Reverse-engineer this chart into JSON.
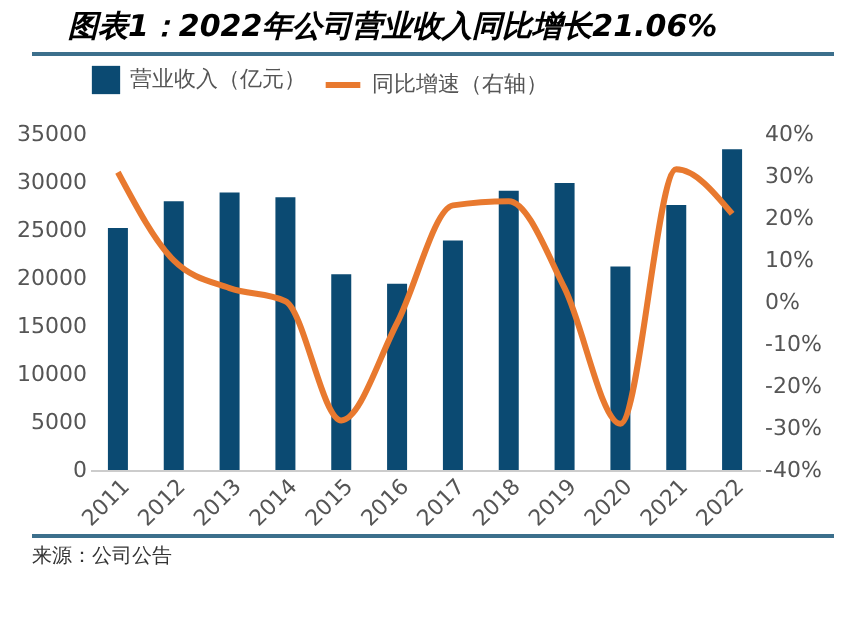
{
  "chart_data": {
    "type": "bar",
    "title": "图表1：2022年公司营业收入同比增长21.06%",
    "categories": [
      "2011",
      "2012",
      "2013",
      "2014",
      "2015",
      "2016",
      "2017",
      "2018",
      "2019",
      "2020",
      "2021",
      "2022"
    ],
    "series": [
      {
        "name": "营业收入（亿元）",
        "color": "#0b4a72",
        "values": [
          25200,
          28000,
          28900,
          28400,
          20400,
          19400,
          23900,
          29100,
          29900,
          21200,
          27600,
          33400
        ]
      },
      {
        "name": "同比增速（右轴）",
        "type": "line",
        "axis": "y2",
        "color": "#e8792f",
        "values": [
          30.9,
          9.9,
          3.3,
          0.2,
          -28.2,
          -5,
          23,
          24,
          3.3,
          -29,
          31.6,
          21
        ]
      }
    ],
    "ylim": [
      0,
      35000
    ],
    "yticks": [
      0,
      5000,
      10000,
      15000,
      20000,
      25000,
      30000,
      35000
    ],
    "y2lim": [
      -40,
      40
    ],
    "y2ticks": [
      {
        "value": -40,
        "label": "-40%"
      },
      {
        "value": -30,
        "label": "-30%"
      },
      {
        "value": -20,
        "label": "-20%"
      },
      {
        "value": -10,
        "label": "-10%"
      },
      {
        "value": 0,
        "label": "0%"
      },
      {
        "value": 10,
        "label": "10%"
      },
      {
        "value": 20,
        "label": "20%"
      },
      {
        "value": 30,
        "label": "30%"
      },
      {
        "value": 40,
        "label": "40%"
      }
    ],
    "legend": "top",
    "grid": false,
    "marker": "none",
    "annotations": [
      "来源：公司公告"
    ]
  }
}
